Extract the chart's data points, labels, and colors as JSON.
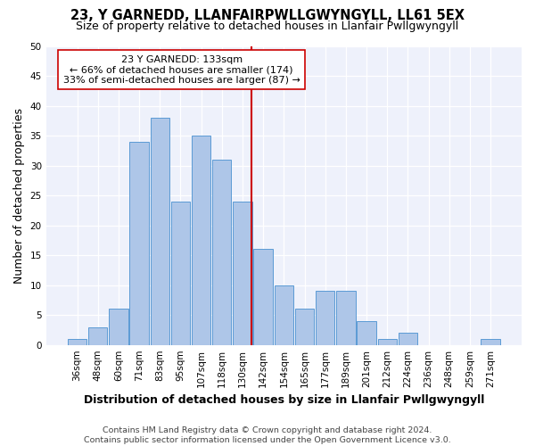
{
  "title1": "23, Y GARNEDD, LLANFAIRPWLLGWYNGYLL, LL61 5EX",
  "title2": "Size of property relative to detached houses in Llanfair Pwllgwyngyll",
  "xlabel": "Distribution of detached houses by size in Llanfair Pwllgwyngyll",
  "ylabel": "Number of detached properties",
  "footer": "Contains HM Land Registry data © Crown copyright and database right 2024.\nContains public sector information licensed under the Open Government Licence v3.0.",
  "categories": [
    "36sqm",
    "48sqm",
    "60sqm",
    "71sqm",
    "83sqm",
    "95sqm",
    "107sqm",
    "118sqm",
    "130sqm",
    "142sqm",
    "154sqm",
    "165sqm",
    "177sqm",
    "189sqm",
    "201sqm",
    "212sqm",
    "224sqm",
    "236sqm",
    "248sqm",
    "259sqm",
    "271sqm"
  ],
  "values": [
    1,
    3,
    6,
    34,
    38,
    24,
    35,
    31,
    24,
    16,
    10,
    6,
    9,
    9,
    4,
    1,
    2,
    0,
    0,
    0,
    1
  ],
  "bar_color": "#aec6e8",
  "bar_edge_color": "#5b9bd5",
  "annotation_title": "23 Y GARNEDD: 133sqm",
  "annotation_line1": "← 66% of detached houses are smaller (174)",
  "annotation_line2": "33% of semi-detached houses are larger (87) →",
  "vline_color": "#cc0000",
  "vline_position": 8.43,
  "background_color": "#ffffff",
  "plot_bg_color": "#eef1fb",
  "grid_color": "#ffffff",
  "ylim": [
    0,
    50
  ],
  "yticks": [
    0,
    5,
    10,
    15,
    20,
    25,
    30,
    35,
    40,
    45,
    50
  ],
  "title1_fontsize": 10.5,
  "title2_fontsize": 9,
  "ylabel_fontsize": 9,
  "xlabel_fontsize": 9,
  "tick_fontsize": 7.5,
  "footer_fontsize": 6.8,
  "ann_fontsize": 8
}
